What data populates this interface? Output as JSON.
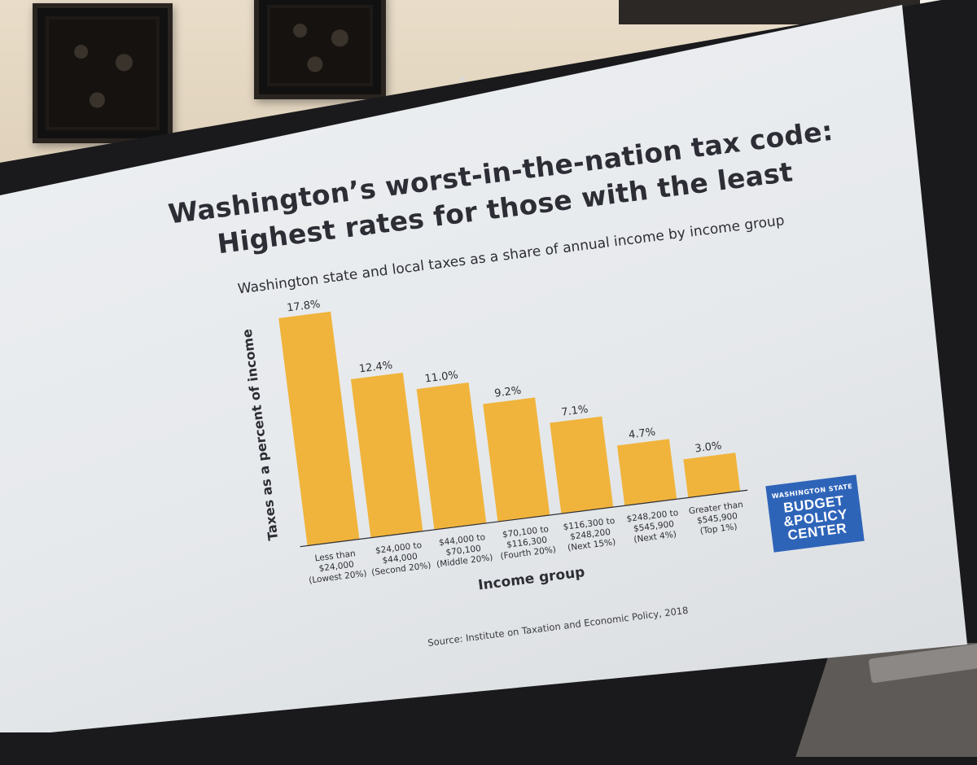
{
  "title_line_1": "Washington’s worst-in-the-nation tax code:",
  "title_line_2": "Highest rates for those with the least",
  "subtitle": "Washington state and local taxes as a share of annual income by income group",
  "source": "Source: Institute on Taxation and Economic Policy, 2018",
  "logo": {
    "line1": "WASHINGTON STATE",
    "line2": "BUDGET",
    "line3": "&POLICY",
    "line4": "CENTER",
    "color": "#2e64b8"
  },
  "colors": {
    "bar": "#f0b43c",
    "text": "#2d2d35",
    "screen": "#eef0f2"
  },
  "chart_data": {
    "type": "bar",
    "ylabel": "Taxes as a percent of income",
    "xlabel": "Income group",
    "ylim": [
      0,
      18
    ],
    "grid": false,
    "categories": [
      [
        "Less than",
        "$24,000",
        "(Lowest 20%)"
      ],
      [
        "$24,000 to",
        "$44,000",
        "(Second 20%)"
      ],
      [
        "$44,000 to",
        "$70,100",
        "(Middle 20%)"
      ],
      [
        "$70,100 to",
        "$116,300",
        "(Fourth 20%)"
      ],
      [
        "$116,300 to",
        "$248,200",
        "(Next 15%)"
      ],
      [
        "$248,200 to",
        "$545,900",
        "(Next 4%)"
      ],
      [
        "Greater than",
        "$545,900",
        "(Top 1%)"
      ]
    ],
    "values": [
      17.8,
      12.4,
      11.0,
      9.2,
      7.1,
      4.7,
      3.0
    ],
    "data_labels": [
      "17.8%",
      "12.4%",
      "11.0%",
      "9.2%",
      "7.1%",
      "4.7%",
      "3.0%"
    ]
  }
}
